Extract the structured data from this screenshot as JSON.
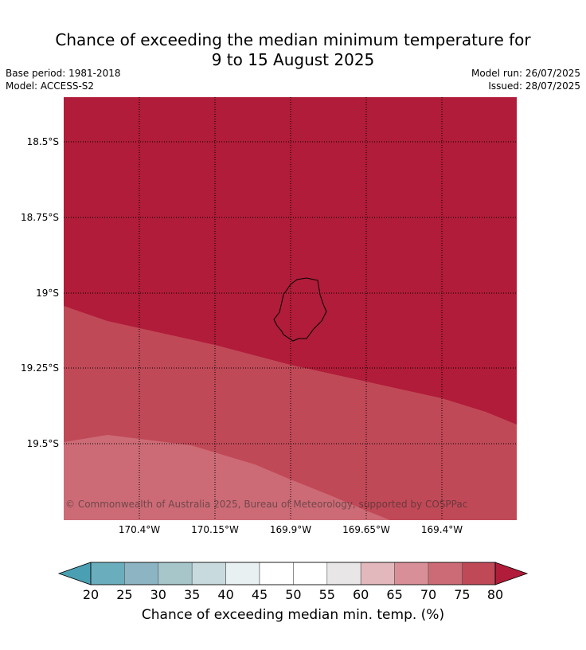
{
  "title_line1": "Chance of exceeding the median minimum temperature for",
  "title_line2": "9 to 15 August 2025",
  "base_period": "Base period: 1981-2018",
  "model": "Model: ACCESS-S2",
  "model_run": "Model run: 26/07/2025",
  "issued": "Issued: 28/07/2025",
  "latitude_labels": [
    "18.5°S",
    "18.75°S",
    "19°S",
    "19.25°S",
    "19.5°S"
  ],
  "longitude_labels": [
    "170.4°W",
    "170.15°W",
    "169.9°W",
    "169.65°W",
    "169.4°W"
  ],
  "copyright": "© Commonwealth of Australia 2025, Bureau of Meteorology, supported by COSPPac",
  "colorbar": {
    "label": "Chance of exceeding median min. temp. (%)",
    "ticks": [
      "20",
      "25",
      "30",
      "35",
      "40",
      "45",
      "50",
      "55",
      "60",
      "65",
      "70",
      "75",
      "80"
    ],
    "colors": [
      "#6aadbd",
      "#8cb4c2",
      "#a6c6ca",
      "#c8dadd",
      "#e8f0f2",
      "#ffffff",
      "#ffffff",
      "#e8e6e7",
      "#e2b8bd",
      "#d98f97",
      "#cc6b76",
      "#c04957"
    ],
    "under_color": "#4a9fb2",
    "over_color": "#b01c39"
  },
  "map_legend": {
    "band_80_plus": "#b01c39",
    "band_75_80": "#c04957",
    "band_70_75": "#cc6b76"
  }
}
